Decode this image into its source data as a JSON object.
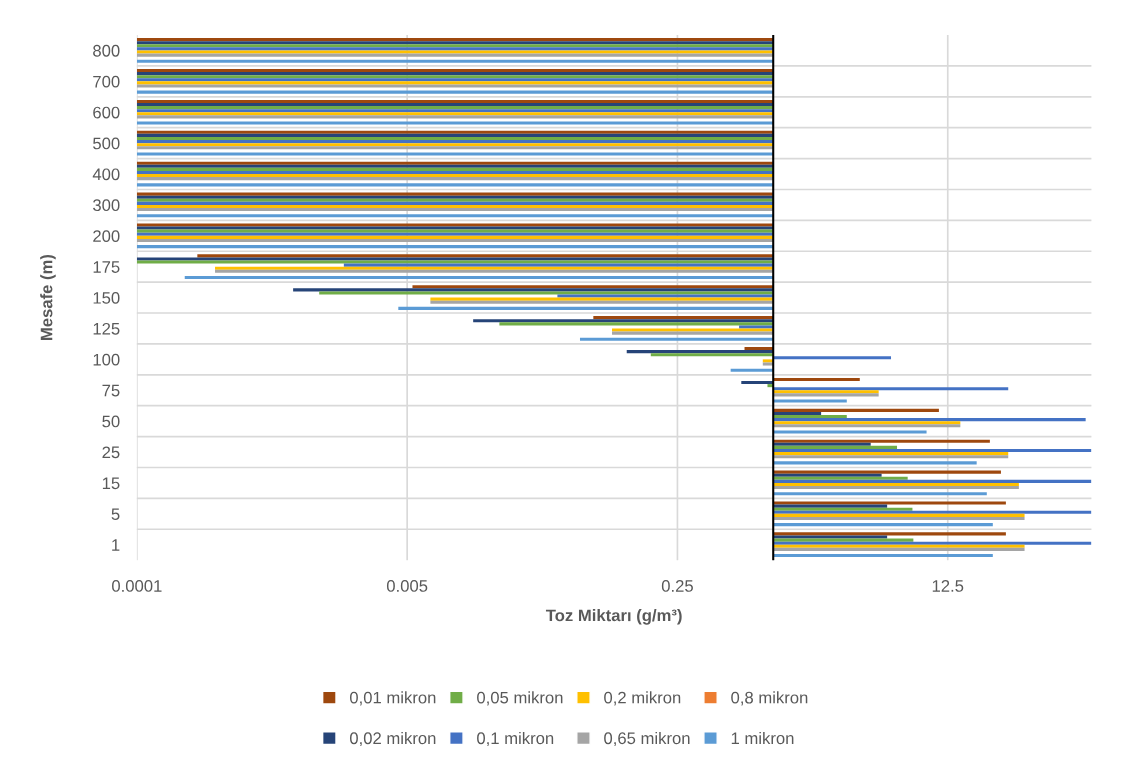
{
  "chart_data": {
    "type": "bar",
    "orientation": "horizontal",
    "xlabel": "Toz Miktarı (g/m³)",
    "ylabel": "Mesafe (m)",
    "categories": [
      "800",
      "700",
      "600",
      "500",
      "400",
      "300",
      "200",
      "175",
      "150",
      "125",
      "100",
      "75",
      "50",
      "25",
      "15",
      "5",
      "1"
    ],
    "series": [
      {
        "name": "0,01 mikron",
        "color": "#9e480e",
        "base": [
          1,
          1,
          1,
          1,
          1,
          1,
          1,
          1,
          1,
          1,
          1,
          1,
          1,
          1,
          1,
          1,
          1
        ],
        "values": [
          -0.9999,
          -0.9999,
          -0.9999,
          -0.9999,
          -0.9999,
          -0.9999,
          -0.9999,
          -0.99976,
          -0.9946,
          -0.926,
          -0.34,
          2.5,
          10,
          22,
          26,
          28,
          28
        ]
      },
      {
        "name": "0,02 mikron",
        "color": "#264478",
        "base": [
          1,
          1,
          1,
          1,
          1,
          1,
          1,
          1,
          1,
          1,
          1,
          1,
          1,
          1,
          1,
          1,
          1
        ],
        "values": [
          -0.9999,
          -0.9999,
          -0.9999,
          -0.9999,
          -0.9999,
          -0.9999,
          -0.9999,
          -0.9999,
          -0.99904,
          -0.987,
          -0.88,
          -0.37,
          1.0,
          3.1,
          3.8,
          4.2,
          4.2
        ]
      },
      {
        "name": "0,05 mikron",
        "color": "#70ad47",
        "base": [
          1,
          1,
          1,
          1,
          1,
          1,
          1,
          1,
          1,
          1,
          1,
          1,
          1,
          1,
          1,
          1,
          1
        ],
        "values": [
          -0.9999,
          -0.9999,
          -0.9999,
          -0.9999,
          -0.9999,
          -0.9999,
          -0.9999,
          -0.9999,
          -0.9986,
          -0.981,
          -0.83,
          -0.08,
          1.9,
          5.0,
          6.0,
          6.5,
          6.6
        ]
      },
      {
        "name": "0,1 mikron",
        "color": "#4472c4",
        "base": [
          1,
          1,
          1,
          1,
          1,
          1,
          1,
          1,
          1,
          1,
          1,
          1,
          1,
          1,
          1,
          1,
          1
        ],
        "values": [
          -0.9999,
          -0.9999,
          -0.9999,
          -0.9999,
          -0.9999,
          -0.9999,
          -0.9999,
          -0.998,
          -0.956,
          -0.39,
          4.5,
          29,
          91,
          99,
          99,
          99,
          99
        ]
      },
      {
        "name": "0,2 mikron",
        "color": "#ffc000",
        "base": [
          1,
          1,
          1,
          1,
          1,
          1,
          1,
          1,
          1,
          1,
          1,
          1,
          1,
          1,
          1,
          1,
          1
        ],
        "values": [
          -0.9999,
          -0.9999,
          -0.9999,
          -0.9999,
          -0.9999,
          -0.9999,
          -0.9999,
          -0.99969,
          -0.993,
          -0.903,
          -0.14,
          3.6,
          14,
          29,
          34,
          37,
          37
        ]
      },
      {
        "name": "0,65 mikron",
        "color": "#a5a5a5",
        "base": [
          1,
          1,
          1,
          1,
          1,
          1,
          1,
          1,
          1,
          1,
          1,
          1,
          1,
          1,
          1,
          1,
          1
        ],
        "values": [
          -0.9999,
          -0.9999,
          -0.9999,
          -0.9999,
          -0.9999,
          -0.9999,
          -0.9999,
          -0.99969,
          -0.993,
          -0.903,
          -0.14,
          3.6,
          14,
          29,
          34,
          37,
          37
        ]
      },
      {
        "name": "0,8 mikron",
        "color": "#ed7d31",
        "values": [
          null,
          null,
          null,
          null,
          null,
          null,
          null,
          null,
          null,
          null,
          null,
          null,
          null,
          null,
          null,
          null,
          null
        ]
      },
      {
        "name": "1 mikron",
        "color": "#5b9bd5",
        "base": [
          1,
          1,
          1,
          1,
          1,
          1,
          1,
          1,
          1,
          1,
          1,
          1,
          1,
          1,
          1,
          1,
          1
        ],
        "values": [
          -0.9999,
          -0.9999,
          -0.9999,
          -0.9999,
          -0.9999,
          -0.9999,
          -0.9999,
          -0.9998,
          -0.9956,
          -0.939,
          -0.46,
          1.9,
          8.2,
          18,
          21,
          23,
          23
        ]
      }
    ],
    "ref_lines": [
      {
        "axis": "x",
        "value": 1,
        "color": "#000000"
      }
    ],
    "log": "x",
    "xlim": [
      0.0001,
      100
    ],
    "xticks": [
      0.0001,
      0.005,
      0.25,
      12.5
    ],
    "grid": true,
    "legend": "bottom"
  }
}
